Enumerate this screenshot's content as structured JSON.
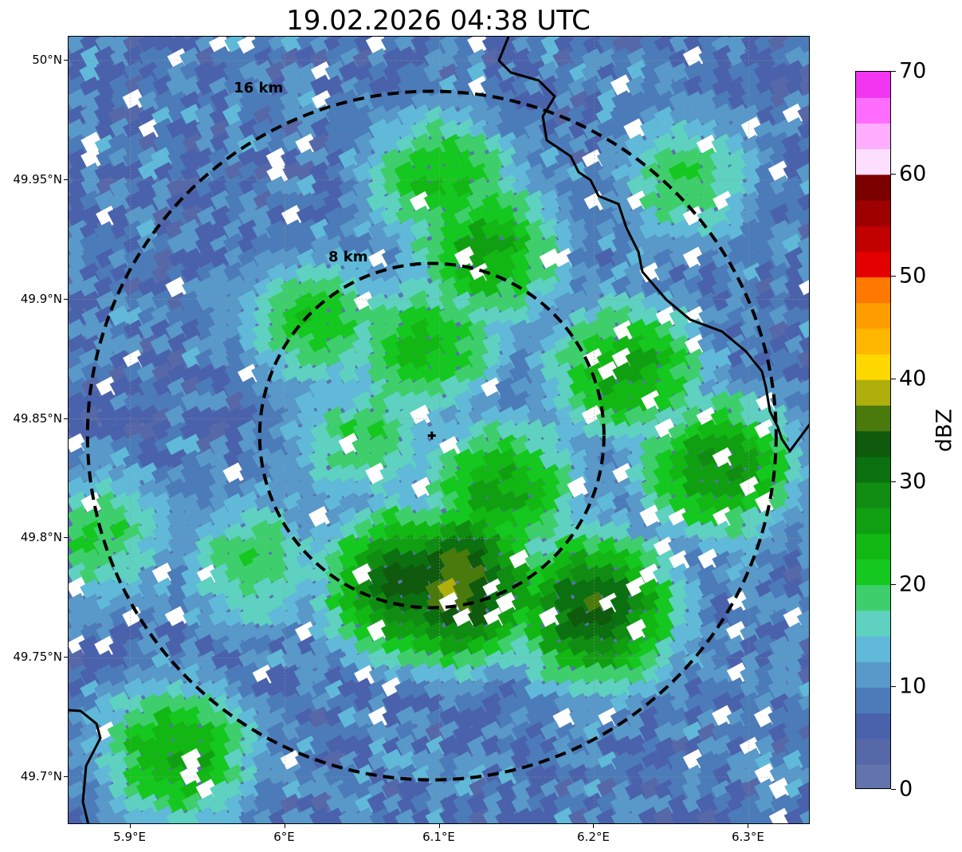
{
  "title": "19.02.2026 04:38 UTC",
  "axes": {
    "lat_ticks": [
      {
        "label": "50°N",
        "value": 50.0
      },
      {
        "label": "49.95°N",
        "value": 49.95
      },
      {
        "label": "49.9°N",
        "value": 49.9
      },
      {
        "label": "49.85°N",
        "value": 49.85
      },
      {
        "label": "49.8°N",
        "value": 49.8
      },
      {
        "label": "49.75°N",
        "value": 49.75
      },
      {
        "label": "49.7°N",
        "value": 49.7
      }
    ],
    "lon_ticks": [
      {
        "label": "5.9°E",
        "value": 5.9
      },
      {
        "label": "6°E",
        "value": 6.0
      },
      {
        "label": "6.1°E",
        "value": 6.1
      },
      {
        "label": "6.2°E",
        "value": 6.2
      },
      {
        "label": "6.3°E",
        "value": 6.3
      }
    ],
    "lon_range": [
      5.86,
      6.34
    ],
    "lat_range": [
      49.68,
      50.01
    ]
  },
  "radar_center": {
    "lon": 6.095,
    "lat": 49.843
  },
  "range_rings": [
    {
      "label": "8 km",
      "radius_km": 8
    },
    {
      "label": "16 km",
      "radius_km": 16
    }
  ],
  "colorbar": {
    "label": "dBZ",
    "range": [
      0,
      70
    ],
    "ticks": [
      "0",
      "10",
      "20",
      "30",
      "40",
      "50",
      "60",
      "70"
    ],
    "colors": [
      "#6373ac",
      "#5668a8",
      "#4a62ab",
      "#4b7cb9",
      "#5899c9",
      "#60b9d8",
      "#5ed1c0",
      "#3ecf6c",
      "#15c81f",
      "#12b714",
      "#119f12",
      "#118c12",
      "#0b7110",
      "#0f5a0c",
      "#4a7a0c",
      "#aeae0d",
      "#fed800",
      "#ffb700",
      "#ff9d00",
      "#ff7800",
      "#e50000",
      "#c10000",
      "#9e0000",
      "#7c0000",
      "#ffdfff",
      "#ffaeff",
      "#ff6cff",
      "#f135f0"
    ]
  },
  "reflectivity_cells": [
    {
      "lon": 6.02,
      "lat": 49.89,
      "dbz": 22
    },
    {
      "lon": 6.09,
      "lat": 49.88,
      "dbz": 24
    },
    {
      "lon": 6.13,
      "lat": 49.92,
      "dbz": 26
    },
    {
      "lon": 6.1,
      "lat": 49.95,
      "dbz": 23
    },
    {
      "lon": 6.05,
      "lat": 49.84,
      "dbz": 20
    },
    {
      "lon": 6.14,
      "lat": 49.82,
      "dbz": 26
    },
    {
      "lon": 6.08,
      "lat": 49.78,
      "dbz": 34
    },
    {
      "lon": 6.11,
      "lat": 49.78,
      "dbz": 38
    },
    {
      "lon": 6.2,
      "lat": 49.77,
      "dbz": 34
    },
    {
      "lon": 6.22,
      "lat": 49.87,
      "dbz": 26
    },
    {
      "lon": 6.28,
      "lat": 49.83,
      "dbz": 28
    },
    {
      "lon": 5.93,
      "lat": 49.71,
      "dbz": 26
    },
    {
      "lon": 5.98,
      "lat": 49.79,
      "dbz": 20
    },
    {
      "lon": 6.26,
      "lat": 49.95,
      "dbz": 20
    },
    {
      "lon": 5.88,
      "lat": 49.8,
      "dbz": 20
    }
  ]
}
